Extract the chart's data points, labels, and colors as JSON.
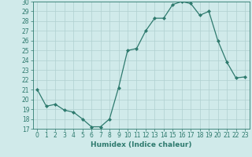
{
  "x": [
    0,
    1,
    2,
    3,
    4,
    5,
    6,
    7,
    8,
    9,
    10,
    11,
    12,
    13,
    14,
    15,
    16,
    17,
    18,
    19,
    20,
    21,
    22,
    23
  ],
  "y": [
    21,
    19.3,
    19.5,
    18.9,
    18.7,
    18.0,
    17.2,
    17.2,
    18.0,
    21.2,
    25.0,
    25.2,
    27.0,
    28.3,
    28.3,
    29.7,
    30.0,
    29.8,
    28.6,
    29.0,
    26.0,
    23.8,
    22.2,
    22.3
  ],
  "line_color": "#2e7a6e",
  "marker": "D",
  "marker_size": 2.0,
  "bg_color": "#d0eaea",
  "grid_color": "#b0d0d0",
  "xlabel": "Humidex (Indice chaleur)",
  "ylim": [
    17,
    30
  ],
  "yticks": [
    17,
    18,
    19,
    20,
    21,
    22,
    23,
    24,
    25,
    26,
    27,
    28,
    29,
    30
  ],
  "xticks": [
    0,
    1,
    2,
    3,
    4,
    5,
    6,
    7,
    8,
    9,
    10,
    11,
    12,
    13,
    14,
    15,
    16,
    17,
    18,
    19,
    20,
    21,
    22,
    23
  ],
  "tick_label_fontsize": 5.5,
  "xlabel_fontsize": 6.5,
  "axis_color": "#2e7a6e",
  "linewidth": 0.9
}
